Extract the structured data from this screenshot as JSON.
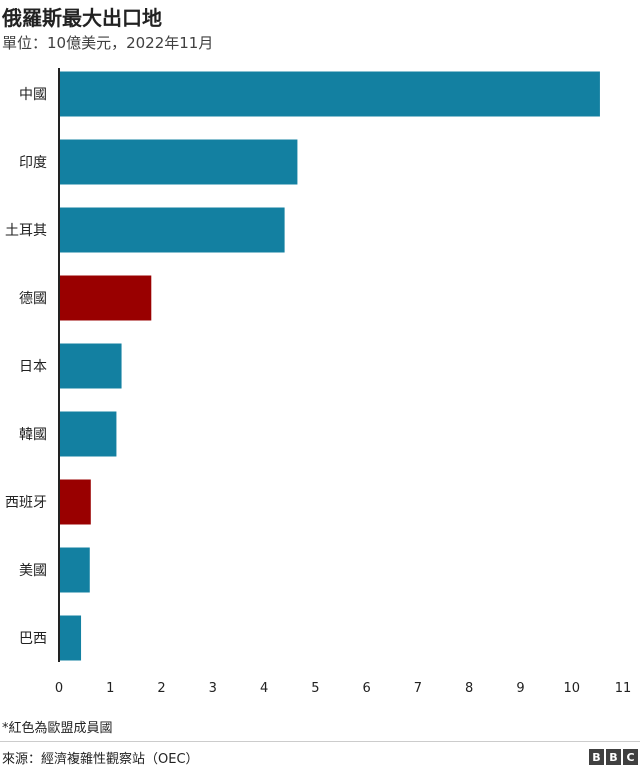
{
  "header": {
    "title": "俄羅斯最大出口地",
    "subtitle": "單位：10億美元，2022年11月"
  },
  "footer": {
    "footnote": "*紅色為歐盟成員國",
    "source": "來源：經濟複雜性觀察站（OEC）",
    "logo_letters": [
      "B",
      "B",
      "C"
    ]
  },
  "colors": {
    "default_bar": "#1380A1",
    "eu_bar": "#990000",
    "axis": "#222222",
    "grid": "#dddddd"
  },
  "chart_data": {
    "type": "bar",
    "orientation": "horizontal",
    "title": "俄羅斯最大出口地",
    "subtitle": "單位：10億美元，2022年11月",
    "categories": [
      "中國",
      "印度",
      "土耳其",
      "德國",
      "日本",
      "韓國",
      "西班牙",
      "美國",
      "巴西"
    ],
    "values": [
      10.55,
      4.65,
      4.4,
      1.8,
      1.22,
      1.12,
      0.62,
      0.6,
      0.43
    ],
    "eu_member": [
      false,
      false,
      false,
      true,
      false,
      false,
      true,
      false,
      false
    ],
    "xlim": [
      0,
      11
    ],
    "xticks": [
      0,
      1,
      2,
      3,
      4,
      5,
      6,
      7,
      8,
      9,
      10,
      11
    ],
    "xlabel": "",
    "ylabel": "",
    "grid": false,
    "legend": "none"
  }
}
